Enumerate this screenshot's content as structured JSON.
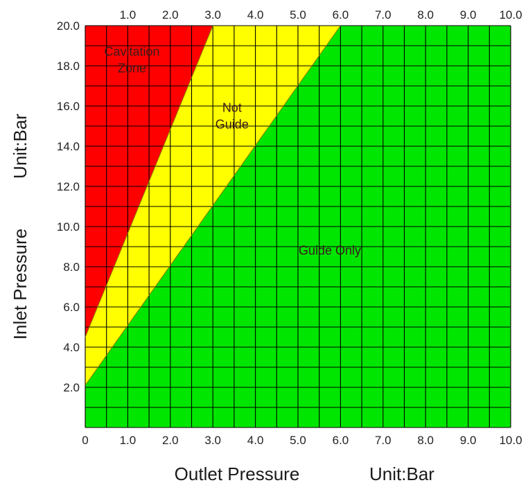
{
  "chart_data": {
    "type": "area",
    "x_axis": {
      "label": "Outlet Pressure",
      "unit_label": "Unit:Bar",
      "range": [
        0,
        10
      ],
      "bottom_ticks": [
        "0",
        "1.0",
        "2.0",
        "3.0",
        "4.0",
        "5.0",
        "6.0",
        "7.0",
        "8.0",
        "9.0",
        "10.0"
      ],
      "top_ticks": [
        "1.0",
        "2.0",
        "3.0",
        "4.0",
        "5.0",
        "6.0",
        "7.0",
        "8.0",
        "9.0",
        "10.0"
      ]
    },
    "y_axis": {
      "label": "Inlet Pressure",
      "unit_label": "Unit:Bar",
      "range": [
        0,
        20
      ],
      "ticks": [
        "2.0",
        "4.0",
        "6.0",
        "8.0",
        "10.0",
        "12.0",
        "14.0",
        "16.0",
        "18.0",
        "20.0"
      ]
    },
    "grid": true,
    "grid_step": {
      "x": 0.5,
      "y": 1
    },
    "zones": [
      {
        "label_lines": [
          "Cavitation",
          "Zone"
        ],
        "color": "#ff0000",
        "boundary_line": [
          [
            0,
            4.5
          ],
          [
            3.0,
            20.0
          ]
        ],
        "label_position": [
          1.1,
          18.5
        ]
      },
      {
        "label_lines": [
          "Not",
          "Guide"
        ],
        "color": "#ffff00",
        "boundary_line": [
          [
            0,
            2.1
          ],
          [
            6.0,
            20.0
          ]
        ],
        "label_position": [
          3.45,
          15.7
        ]
      },
      {
        "label_lines": [
          "Guide Only"
        ],
        "color": "#00e600",
        "label_position": [
          5.75,
          8.6
        ]
      }
    ]
  }
}
